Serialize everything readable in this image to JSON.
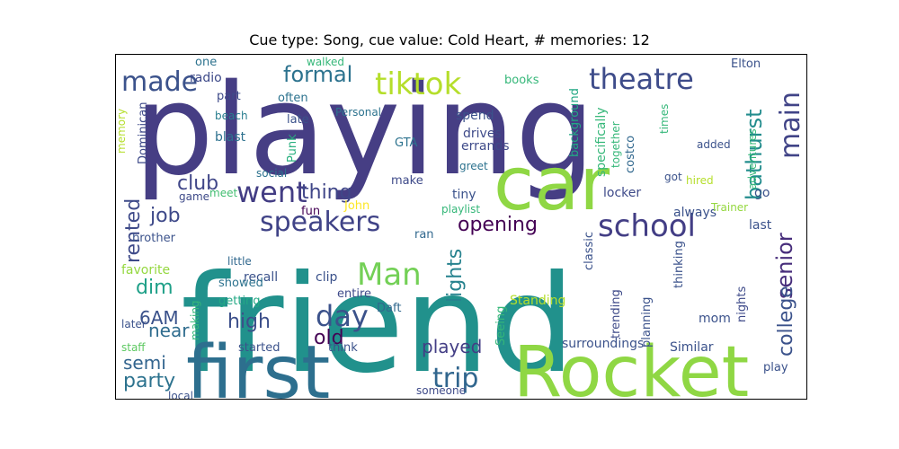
{
  "chart_data": {
    "type": "wordcloud",
    "title": "Cue type: Song, cue value: Cold Heart, # memories: 12",
    "words": [
      {
        "text": "playing",
        "size": 140,
        "color": "#463e84"
      },
      {
        "text": "friend",
        "size": 150,
        "color": "#21918c"
      },
      {
        "text": "first",
        "size": 82,
        "color": "#2d6f8e"
      },
      {
        "text": "Rocket",
        "size": 78,
        "color": "#8fd744"
      },
      {
        "text": "car",
        "size": 82,
        "color": "#8fd744"
      },
      {
        "text": "school",
        "size": 34,
        "color": "#433e85"
      },
      {
        "text": "theatre",
        "size": 32,
        "color": "#3e4c8a"
      },
      {
        "text": "tiktok",
        "size": 34,
        "color": "#b5de2b"
      },
      {
        "text": "made",
        "size": 30,
        "color": "#3b528b"
      },
      {
        "text": "speakers",
        "size": 30,
        "color": "#404387"
      },
      {
        "text": "went",
        "size": 32,
        "color": "#433d84"
      },
      {
        "text": "main",
        "size": 30,
        "color": "#414487"
      },
      {
        "text": "Man",
        "size": 34,
        "color": "#73d056"
      },
      {
        "text": "day",
        "size": 32,
        "color": "#3b528b"
      },
      {
        "text": "trip",
        "size": 30,
        "color": "#31668e"
      },
      {
        "text": "formal",
        "size": 24,
        "color": "#2c728e"
      },
      {
        "text": "bathurst",
        "size": 24,
        "color": "#228c8d"
      },
      {
        "text": "senior",
        "size": 24,
        "color": "#472d7b"
      },
      {
        "text": "college",
        "size": 22,
        "color": "#3b528b"
      },
      {
        "text": "opening",
        "size": 22,
        "color": "#440154"
      },
      {
        "text": "lights",
        "size": 22,
        "color": "#26828e"
      },
      {
        "text": "club",
        "size": 22,
        "color": "#404688"
      },
      {
        "text": "job",
        "size": 22,
        "color": "#3e4989"
      },
      {
        "text": "thing",
        "size": 22,
        "color": "#404688"
      },
      {
        "text": "rented",
        "size": 22,
        "color": "#3e4a89"
      },
      {
        "text": "played",
        "size": 20,
        "color": "#433e85"
      },
      {
        "text": "party",
        "size": 22,
        "color": "#2c728e"
      },
      {
        "text": "semi",
        "size": 20,
        "color": "#32648e"
      },
      {
        "text": "old",
        "size": 22,
        "color": "#440154"
      },
      {
        "text": "high",
        "size": 22,
        "color": "#3c4f8a"
      },
      {
        "text": "near",
        "size": 20,
        "color": "#2f6c8e"
      },
      {
        "text": "6AM",
        "size": 20,
        "color": "#3b528b"
      },
      {
        "text": "dim",
        "size": 22,
        "color": "#1fa088"
      },
      {
        "text": "brother",
        "size": 13,
        "color": "#3b528b"
      },
      {
        "text": "radio",
        "size": 14,
        "color": "#3e4a89"
      },
      {
        "text": "part",
        "size": 13,
        "color": "#3e4a89"
      },
      {
        "text": "often",
        "size": 13,
        "color": "#2c728e"
      },
      {
        "text": "late",
        "size": 13,
        "color": "#3b528b"
      },
      {
        "text": "beach",
        "size": 12,
        "color": "#287d8e"
      },
      {
        "text": "blast",
        "size": 14,
        "color": "#2d718e"
      },
      {
        "text": "Punk",
        "size": 13,
        "color": "#2ab07f"
      },
      {
        "text": "social",
        "size": 12,
        "color": "#2c728e"
      },
      {
        "text": "game",
        "size": 12,
        "color": "#3e4a89"
      },
      {
        "text": "meet",
        "size": 12,
        "color": "#42be71"
      },
      {
        "text": "fun",
        "size": 13,
        "color": "#440154"
      },
      {
        "text": "John",
        "size": 13,
        "color": "#fde725"
      },
      {
        "text": "favorite",
        "size": 14,
        "color": "#95d840"
      },
      {
        "text": "little",
        "size": 12,
        "color": "#31688e"
      },
      {
        "text": "recall",
        "size": 14,
        "color": "#3b528b"
      },
      {
        "text": "showed",
        "size": 13,
        "color": "#2c728e"
      },
      {
        "text": "getting",
        "size": 13,
        "color": "#22a884"
      },
      {
        "text": "making",
        "size": 12,
        "color": "#35b779"
      },
      {
        "text": "later",
        "size": 12,
        "color": "#3b528b"
      },
      {
        "text": "staff",
        "size": 12,
        "color": "#5ec962"
      },
      {
        "text": "local",
        "size": 12,
        "color": "#3b528b"
      },
      {
        "text": "started",
        "size": 13,
        "color": "#3b528b"
      },
      {
        "text": "think",
        "size": 13,
        "color": "#3b528b"
      },
      {
        "text": "entire",
        "size": 13,
        "color": "#3e4a89"
      },
      {
        "text": "Daft",
        "size": 13,
        "color": "#31688e"
      },
      {
        "text": "clip",
        "size": 14,
        "color": "#3b528b"
      },
      {
        "text": "make",
        "size": 13,
        "color": "#3e4a89"
      },
      {
        "text": "tiny",
        "size": 14,
        "color": "#3b528b"
      },
      {
        "text": "ran",
        "size": 13,
        "color": "#31688e"
      },
      {
        "text": "spend",
        "size": 14,
        "color": "#3b528b"
      },
      {
        "text": "drives",
        "size": 14,
        "color": "#3e4a89"
      },
      {
        "text": "errands",
        "size": 14,
        "color": "#3e4a89"
      },
      {
        "text": "GTA",
        "size": 13,
        "color": "#2c728e"
      },
      {
        "text": "greet",
        "size": 12,
        "color": "#2c728e"
      },
      {
        "text": "playlist",
        "size": 12,
        "color": "#35b779"
      },
      {
        "text": "Personal",
        "size": 12,
        "color": "#2c728e"
      },
      {
        "text": "walked",
        "size": 12,
        "color": "#35b779"
      },
      {
        "text": "one",
        "size": 13,
        "color": "#2c728e"
      },
      {
        "text": "books",
        "size": 13,
        "color": "#35b779"
      },
      {
        "text": "background",
        "size": 13,
        "color": "#22a884"
      },
      {
        "text": "specifically",
        "size": 14,
        "color": "#35b779"
      },
      {
        "text": "costco",
        "size": 13,
        "color": "#31688e"
      },
      {
        "text": "together",
        "size": 12,
        "color": "#35b779"
      },
      {
        "text": "times",
        "size": 12,
        "color": "#35b779"
      },
      {
        "text": "Elton",
        "size": 13,
        "color": "#3b528b"
      },
      {
        "text": "added",
        "size": 12,
        "color": "#3b528b"
      },
      {
        "text": "got",
        "size": 12,
        "color": "#3b528b"
      },
      {
        "text": "hired",
        "size": 12,
        "color": "#b5de2b"
      },
      {
        "text": "adventures",
        "size": 12,
        "color": "#35b779"
      },
      {
        "text": "locker",
        "size": 14,
        "color": "#3e4a89"
      },
      {
        "text": "go",
        "size": 14,
        "color": "#3b528b"
      },
      {
        "text": "always",
        "size": 14,
        "color": "#3b528b"
      },
      {
        "text": "Trainer",
        "size": 12,
        "color": "#95d840"
      },
      {
        "text": "last",
        "size": 14,
        "color": "#3b528b"
      },
      {
        "text": "classic",
        "size": 13,
        "color": "#3b528b"
      },
      {
        "text": "thinking",
        "size": 13,
        "color": "#3b528b"
      },
      {
        "text": "nights",
        "size": 13,
        "color": "#3e4a89"
      },
      {
        "text": "trending",
        "size": 13,
        "color": "#3e4a89"
      },
      {
        "text": "planning",
        "size": 13,
        "color": "#3b528b"
      },
      {
        "text": "mom",
        "size": 14,
        "color": "#3b528b"
      },
      {
        "text": "Standing",
        "size": 14,
        "color": "#b5de2b"
      },
      {
        "text": "Seeing",
        "size": 13,
        "color": "#35b779"
      },
      {
        "text": "surroundings",
        "size": 14,
        "color": "#3b528b"
      },
      {
        "text": "Similar",
        "size": 14,
        "color": "#3b528b"
      },
      {
        "text": "play",
        "size": 13,
        "color": "#3b528b"
      },
      {
        "text": "someone",
        "size": 12,
        "color": "#3e4a89"
      },
      {
        "text": "Dominican",
        "size": 13,
        "color": "#3e4a89"
      },
      {
        "text": "memory",
        "size": 12,
        "color": "#b5de2b"
      }
    ]
  }
}
